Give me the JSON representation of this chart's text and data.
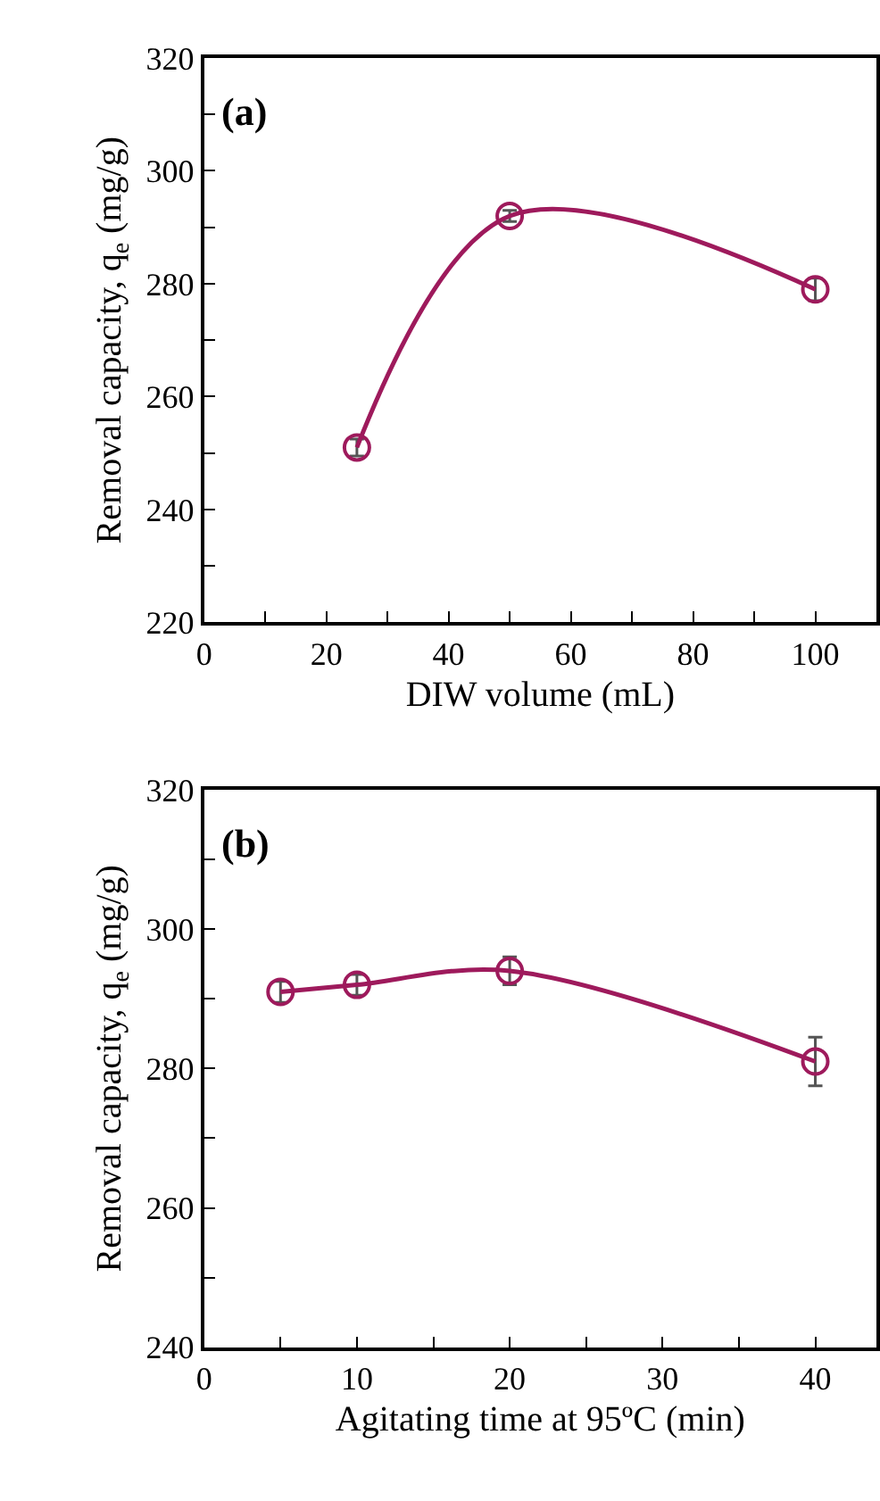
{
  "chart_data": [
    {
      "type": "line",
      "xlabel": "DIW volume (mL)",
      "ylabel": "Removal capacity, q$_{e}$ (mg/g)",
      "annotations": [
        "(a)"
      ],
      "x": [
        25,
        50,
        100
      ],
      "series": [
        {
          "color": "#9e1a5c",
          "values": [
            251,
            292,
            279
          ],
          "errors": [
            1.5,
            1,
            2
          ]
        }
      ],
      "xlim": [
        0,
        110
      ],
      "xticks": [
        0,
        {
          "value": 10,
          "label": null
        },
        20,
        {
          "value": 30,
          "label": null
        },
        40,
        {
          "value": 50,
          "label": null
        },
        60,
        {
          "value": 70,
          "label": null
        },
        80,
        {
          "value": 90,
          "label": null
        },
        100
      ],
      "ylim": [
        220,
        320
      ],
      "yticks": [
        220,
        {
          "value": 230,
          "label": null
        },
        240,
        {
          "value": 250,
          "label": null
        },
        260,
        {
          "value": 270,
          "label": null
        },
        280,
        {
          "value": 290,
          "label": null
        },
        300,
        {
          "value": 310,
          "label": null
        },
        320
      ],
      "marker": "circle",
      "line_style": "solid"
    },
    {
      "type": "line",
      "xlabel": "Agitating time at 95ºC (min)",
      "ylabel": "Removal capacity, q$_{e}$ (mg/g)",
      "annotations": [
        "(b)"
      ],
      "x": [
        5,
        10,
        20,
        40
      ],
      "series": [
        {
          "color": "#9e1a5c",
          "values": [
            291,
            292,
            294,
            281
          ],
          "errors": [
            1.5,
            1.5,
            2,
            3.5
          ]
        }
      ],
      "xlim": [
        0,
        44
      ],
      "xticks": [
        0,
        {
          "value": 5,
          "label": null
        },
        10,
        {
          "value": 15,
          "label": null
        },
        20,
        {
          "value": 25,
          "label": null
        },
        30,
        {
          "value": 35,
          "label": null
        },
        40
      ],
      "ylim": [
        240,
        320
      ],
      "yticks": [
        240,
        {
          "value": 250,
          "label": null
        },
        260,
        {
          "value": 270,
          "label": null
        },
        280,
        {
          "value": 290,
          "label": null
        },
        300,
        {
          "value": 310,
          "label": null
        },
        320
      ],
      "marker": "circle",
      "line_style": "solid"
    }
  ]
}
